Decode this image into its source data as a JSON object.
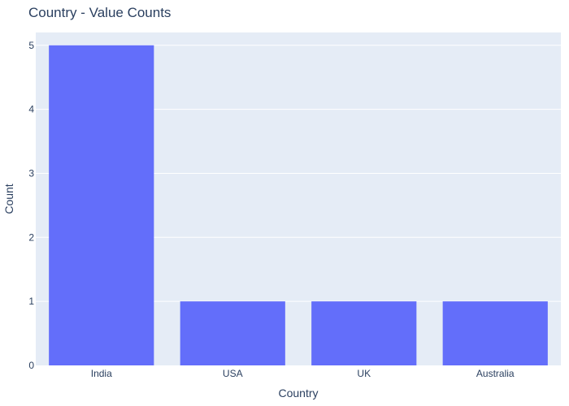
{
  "chart_data": {
    "type": "bar",
    "title": "Country - Value Counts",
    "xlabel": "Country",
    "ylabel": "Count",
    "categories": [
      "India",
      "USA",
      "UK",
      "Australia"
    ],
    "values": [
      5,
      1,
      1,
      1
    ],
    "ylim": [
      0,
      5.2
    ],
    "yticks": [
      0,
      1,
      2,
      3,
      4,
      5
    ],
    "grid": true,
    "legend": "none",
    "colors": {
      "bar": "#636efa",
      "plot_background": "#e5ecf6",
      "gridline": "#ffffff",
      "text": "#2a3f5f"
    }
  }
}
